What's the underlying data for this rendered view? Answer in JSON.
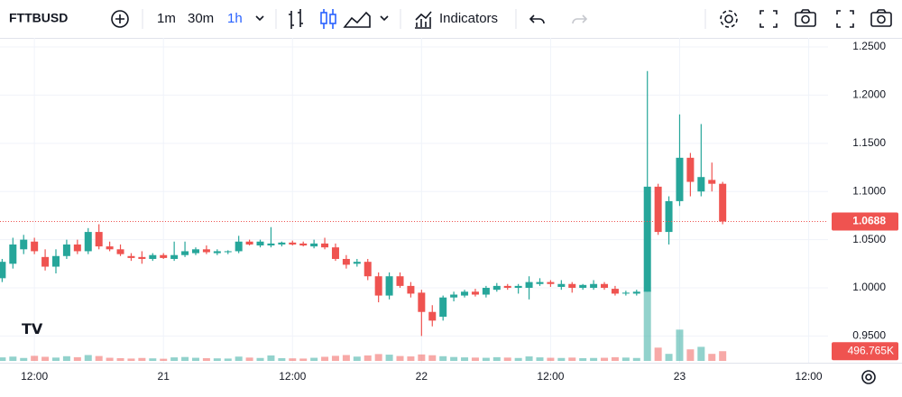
{
  "toolbar": {
    "symbol": "FTTBUSD",
    "intervals": [
      "1m",
      "30m",
      "1h"
    ],
    "indicators": "Indicators"
  },
  "chart_data": {
    "type": "candlestick",
    "x": [
      9,
      10,
      11,
      12,
      13,
      14,
      15,
      16,
      17,
      18,
      19,
      20,
      21,
      22,
      23,
      24,
      25,
      26,
      27,
      28,
      29,
      30,
      31,
      32,
      33,
      34,
      35,
      36,
      37,
      38,
      39,
      40,
      41,
      42,
      43,
      44,
      45,
      46,
      47,
      48,
      49,
      50,
      51,
      52,
      53,
      54,
      55,
      56,
      57,
      58,
      59,
      60,
      61,
      62,
      63,
      64,
      65,
      66,
      67,
      68,
      69,
      70,
      71,
      72,
      73,
      74,
      75,
      76
    ],
    "open": [
      1.01,
      1.025,
      1.04,
      1.048,
      1.032,
      1.022,
      1.033,
      1.045,
      1.038,
      1.058,
      1.043,
      1.04,
      1.033,
      1.032,
      1.03,
      1.034,
      1.03,
      1.034,
      1.036,
      1.04,
      1.036,
      1.037,
      1.038,
      1.048,
      1.044,
      1.044,
      1.045,
      1.047,
      1.046,
      1.043,
      1.046,
      1.042,
      1.03,
      1.025,
      1.027,
      1.012,
      0.992,
      1.012,
      1.002,
      0.995,
      0.975,
      0.97,
      0.99,
      0.992,
      0.996,
      0.993,
      0.998,
      1.002,
      1.0,
      1.0,
      1.004,
      1.006,
      1.001,
      1.004,
      1.0,
      1.0,
      1.004,
      0.999,
      0.994,
      0.994,
      0.996,
      1.105,
      1.058,
      1.09,
      1.135,
      1.1,
      1.112,
      1.108
    ],
    "high": [
      1.03,
      1.052,
      1.055,
      1.052,
      1.04,
      1.04,
      1.05,
      1.05,
      1.062,
      1.066,
      1.048,
      1.045,
      1.036,
      1.038,
      1.036,
      1.036,
      1.048,
      1.048,
      1.042,
      1.044,
      1.04,
      1.039,
      1.054,
      1.05,
      1.05,
      1.063,
      1.048,
      1.049,
      1.048,
      1.05,
      1.052,
      1.046,
      1.034,
      1.03,
      1.03,
      1.016,
      1.016,
      1.016,
      1.006,
      0.998,
      0.982,
      0.992,
      0.996,
      0.998,
      0.999,
      1.002,
      1.005,
      1.004,
      1.004,
      1.012,
      1.01,
      1.008,
      1.008,
      1.006,
      1.004,
      1.008,
      1.006,
      1.002,
      0.997,
      0.998,
      1.225,
      1.108,
      1.095,
      1.18,
      1.14,
      1.17,
      1.13,
      1.11
    ],
    "low": [
      1.006,
      1.02,
      1.035,
      1.035,
      1.018,
      1.015,
      1.03,
      1.035,
      1.035,
      1.04,
      1.038,
      1.033,
      1.028,
      1.025,
      1.028,
      1.03,
      1.028,
      1.032,
      1.034,
      1.035,
      1.034,
      1.035,
      1.036,
      1.044,
      1.042,
      1.042,
      1.043,
      1.044,
      1.043,
      1.041,
      1.04,
      1.028,
      1.02,
      1.022,
      1.008,
      0.985,
      0.988,
      1.0,
      0.99,
      0.95,
      0.96,
      0.966,
      0.986,
      0.99,
      0.991,
      0.99,
      0.996,
      0.998,
      0.994,
      0.988,
      1.002,
      1.001,
      0.998,
      0.995,
      0.998,
      0.998,
      0.998,
      0.992,
      0.992,
      0.992,
      0.996,
      1.055,
      1.045,
      1.085,
      1.095,
      1.095,
      1.1,
      1.066
    ],
    "close": [
      1.027,
      1.045,
      1.05,
      1.038,
      1.022,
      1.033,
      1.045,
      1.038,
      1.058,
      1.043,
      1.04,
      1.035,
      1.031,
      1.03,
      1.034,
      1.031,
      1.034,
      1.038,
      1.04,
      1.037,
      1.038,
      1.038,
      1.048,
      1.045,
      1.048,
      1.046,
      1.047,
      1.045,
      1.044,
      1.046,
      1.042,
      1.03,
      1.024,
      1.027,
      1.012,
      0.992,
      1.012,
      1.002,
      0.994,
      0.975,
      0.966,
      0.99,
      0.993,
      0.996,
      0.993,
      1.0,
      1.002,
      1.0,
      1.002,
      1.006,
      1.006,
      1.004,
      1.004,
      1.0,
      1.003,
      1.004,
      1.0,
      0.994,
      0.995,
      0.996,
      1.105,
      1.058,
      1.09,
      1.135,
      1.11,
      1.115,
      1.108,
      1.0688
    ],
    "volume": [
      180000,
      220000,
      150000,
      260000,
      210000,
      170000,
      240000,
      190000,
      300000,
      250000,
      160000,
      140000,
      120000,
      150000,
      130000,
      110000,
      180000,
      200000,
      160000,
      140000,
      130000,
      120000,
      220000,
      170000,
      150000,
      280000,
      140000,
      130000,
      120000,
      160000,
      210000,
      260000,
      300000,
      220000,
      280000,
      350000,
      320000,
      250000,
      230000,
      330000,
      290000,
      240000,
      200000,
      180000,
      170000,
      160000,
      190000,
      170000,
      150000,
      230000,
      180000,
      160000,
      150000,
      170000,
      140000,
      150000,
      160000,
      190000,
      170000,
      150000,
      3600000,
      680000,
      360000,
      1600000,
      590000,
      720000,
      360000,
      496765
    ],
    "last_close_label": "1.0688",
    "last_volume_label": "496.765K",
    "colors": {
      "up": "#26a69a",
      "down": "#ef5350"
    },
    "ylim": [
      0.9223,
      1.2594
    ],
    "yticks": [
      {
        "value": 0.95,
        "label": "0.9500"
      },
      {
        "value": 1.0,
        "label": "1.0000"
      },
      {
        "value": 1.05,
        "label": "1.0500"
      },
      {
        "value": 1.1,
        "label": "1.1000"
      },
      {
        "value": 1.15,
        "label": "1.1500"
      },
      {
        "value": 1.2,
        "label": "1.2000"
      },
      {
        "value": 1.25,
        "label": "1.2500"
      }
    ],
    "xlim": [
      8.8,
      85.8
    ],
    "xticks": [
      {
        "value": 12,
        "label": "12:00"
      },
      {
        "value": 24,
        "label": "21"
      },
      {
        "value": 36,
        "label": "12:00"
      },
      {
        "value": 48,
        "label": "22"
      },
      {
        "value": 60,
        "label": "12:00"
      },
      {
        "value": 72,
        "label": "23"
      },
      {
        "value": 84,
        "label": "12:00"
      }
    ],
    "grid": true
  }
}
